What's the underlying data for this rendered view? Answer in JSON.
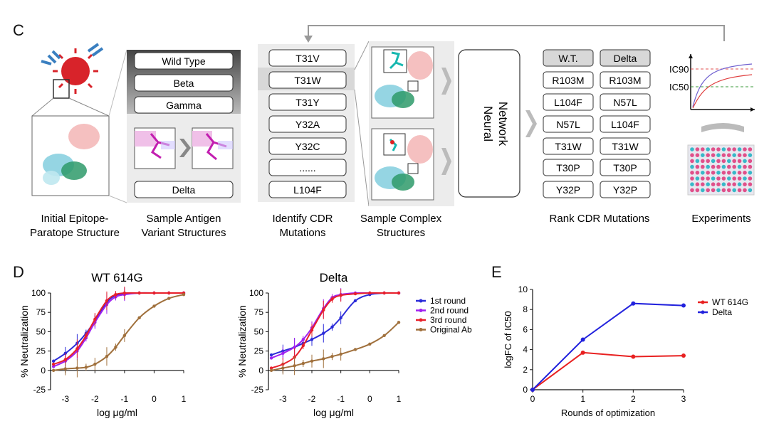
{
  "panel_c": {
    "label": "C",
    "variants": [
      "Wild Type",
      "Beta",
      "Gamma",
      "Delta"
    ],
    "mutations": [
      "T31V",
      "T31W",
      "T31Y",
      "Y32A",
      "Y32C",
      "......",
      "L104F"
    ],
    "network_label": [
      "Neural",
      "Network"
    ],
    "rank_headers": [
      "W.T.",
      "Delta"
    ],
    "rank_wt": [
      "R103M",
      "L104F",
      "N57L",
      "T31W",
      "T30P",
      "Y32P"
    ],
    "rank_delta": [
      "R103M",
      "N57L",
      "L104F",
      "T31W",
      "T30P",
      "Y32P"
    ],
    "ic90": "IC90",
    "ic50": "IC50",
    "captions": {
      "initial": [
        "Initial Epitope-",
        "Paratope Structure"
      ],
      "antigen": [
        "Sample Antigen",
        "Variant Structures"
      ],
      "identify": [
        "Identify CDR",
        "Mutations"
      ],
      "complex": [
        "Sample Complex",
        "Structures"
      ],
      "rank": [
        "Rank CDR Mutations"
      ],
      "experiments": [
        "Experiments"
      ]
    }
  },
  "panel_d": {
    "label": "D"
  },
  "panel_e": {
    "label": "E"
  },
  "colors": {
    "first_round": "#2b2bd9",
    "second_round": "#a020f0",
    "third_round": "#e8202a",
    "original": "#a0703c",
    "delta_e": "#2222dd",
    "wt_e": "#e82020"
  },
  "chart_data": [
    {
      "type": "line",
      "title": "WT 614G",
      "xlabel": "log μg/ml",
      "ylabel": "% Neutralization",
      "xlim": [
        -3.5,
        1
      ],
      "ylim": [
        -25,
        100
      ],
      "xticks": [
        -3,
        -2,
        -1,
        0,
        1
      ],
      "yticks": [
        -25,
        0,
        25,
        50,
        75,
        100
      ],
      "series": [
        {
          "name": "1st round",
          "color": "#2b2bd9",
          "x": [
            -3.4,
            -3.0,
            -2.6,
            -2.3,
            -2.0,
            -1.6,
            -1.3,
            -1.0,
            -0.5,
            0.0,
            0.5,
            1.0
          ],
          "y": [
            12,
            22,
            35,
            48,
            64,
            88,
            97,
            99,
            100,
            100,
            100,
            100
          ]
        },
        {
          "name": "2nd round",
          "color": "#a020f0",
          "x": [
            -3.4,
            -3.0,
            -2.6,
            -2.3,
            -2.0,
            -1.6,
            -1.3,
            -1.0,
            -0.5,
            0.0,
            0.5,
            1.0
          ],
          "y": [
            5,
            12,
            25,
            42,
            62,
            85,
            95,
            98,
            100,
            100,
            100,
            100
          ]
        },
        {
          "name": "3rd round",
          "color": "#e8202a",
          "x": [
            -3.4,
            -3.0,
            -2.6,
            -2.3,
            -2.0,
            -1.6,
            -1.3,
            -1.0,
            -0.5,
            0.0,
            0.5,
            1.0
          ],
          "y": [
            8,
            14,
            28,
            45,
            66,
            90,
            98,
            100,
            100,
            100,
            100,
            100
          ]
        },
        {
          "name": "Original Ab",
          "color": "#a0703c",
          "x": [
            -3.4,
            -3.0,
            -2.6,
            -2.3,
            -2.0,
            -1.6,
            -1.3,
            -1.0,
            -0.5,
            0.0,
            0.5,
            1.0
          ],
          "y": [
            0,
            2,
            3,
            4,
            8,
            18,
            30,
            45,
            68,
            83,
            93,
            98
          ]
        }
      ]
    },
    {
      "type": "line",
      "title": "Delta",
      "xlabel": "log μg/ml",
      "ylabel": "% Neutralization",
      "xlim": [
        -3.5,
        1
      ],
      "ylim": [
        -25,
        100
      ],
      "xticks": [
        -3,
        -2,
        -1,
        0,
        1
      ],
      "yticks": [
        -25,
        0,
        25,
        50,
        75,
        100
      ],
      "series": [
        {
          "name": "1st round",
          "color": "#2b2bd9",
          "x": [
            -3.4,
            -3.0,
            -2.6,
            -2.3,
            -2.0,
            -1.6,
            -1.3,
            -1.0,
            -0.5,
            0.0,
            0.5,
            1.0
          ],
          "y": [
            20,
            25,
            30,
            35,
            40,
            48,
            56,
            68,
            90,
            98,
            100,
            100
          ]
        },
        {
          "name": "2nd round",
          "color": "#a020f0",
          "x": [
            -3.4,
            -3.0,
            -2.6,
            -2.3,
            -2.0,
            -1.6,
            -1.3,
            -1.0,
            -0.5,
            0.0,
            0.5,
            1.0
          ],
          "y": [
            16,
            22,
            30,
            40,
            55,
            80,
            94,
            98,
            100,
            100,
            100,
            100
          ]
        },
        {
          "name": "3rd round",
          "color": "#e8202a",
          "x": [
            -3.4,
            -3.0,
            -2.6,
            -2.3,
            -2.0,
            -1.6,
            -1.3,
            -1.0,
            -0.5,
            0.0,
            0.5,
            1.0
          ],
          "y": [
            3,
            8,
            17,
            32,
            52,
            78,
            92,
            97,
            99,
            100,
            100,
            100
          ]
        },
        {
          "name": "Original Ab",
          "color": "#a0703c",
          "x": [
            -3.4,
            -3.0,
            -2.6,
            -2.3,
            -2.0,
            -1.6,
            -1.3,
            -1.0,
            -0.5,
            0.0,
            0.5,
            1.0
          ],
          "y": [
            0,
            3,
            6,
            9,
            12,
            15,
            18,
            21,
            27,
            34,
            45,
            62
          ]
        }
      ]
    },
    {
      "type": "line",
      "xlabel": "Rounds of optimization",
      "ylabel": "logFC of IC50",
      "xlim": [
        0,
        3
      ],
      "ylim": [
        0,
        10
      ],
      "xticks": [
        0,
        1,
        2,
        3
      ],
      "yticks": [
        0,
        2,
        4,
        6,
        8,
        10
      ],
      "series": [
        {
          "name": "WT 614G",
          "color": "#e82020",
          "x": [
            0,
            1,
            2,
            3
          ],
          "y": [
            0,
            3.7,
            3.3,
            3.4
          ]
        },
        {
          "name": "Delta",
          "color": "#2222dd",
          "x": [
            0,
            1,
            2,
            3
          ],
          "y": [
            0,
            5.0,
            8.6,
            8.4
          ]
        }
      ]
    }
  ]
}
